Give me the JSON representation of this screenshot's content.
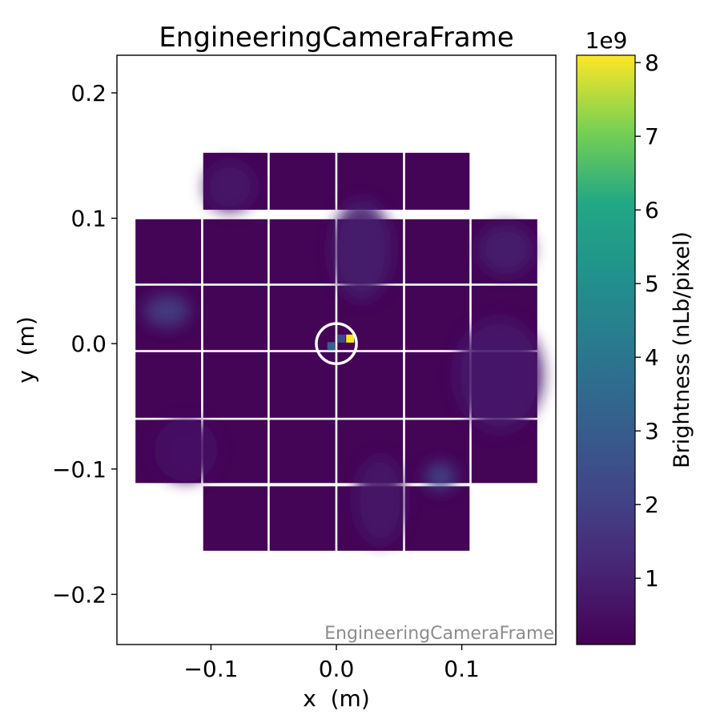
{
  "chart_data": {
    "type": "heatmap",
    "title": "EngineeringCameraFrame",
    "xlabel": "x  (m)",
    "ylabel": "y  (m)",
    "xlim": [
      -0.175,
      0.175
    ],
    "ylim": [
      -0.24,
      0.23
    ],
    "x_ticks": [
      {
        "value": -0.1,
        "label": "−0.1"
      },
      {
        "value": 0.0,
        "label": "0.0"
      },
      {
        "value": 0.1,
        "label": "0.1"
      }
    ],
    "y_ticks": [
      {
        "value": 0.2,
        "label": "0.2"
      },
      {
        "value": 0.1,
        "label": "0.1"
      },
      {
        "value": 0.0,
        "label": "0.0"
      },
      {
        "value": -0.1,
        "label": "−0.1"
      },
      {
        "value": -0.2,
        "label": "−0.2"
      }
    ],
    "watermark": "EngineeringCameraFrame",
    "grid": false,
    "colormap": "viridis",
    "colorbar": {
      "label": "Brightness (nLb/pixel)",
      "multiplier": "1e9",
      "range": [
        0.1,
        8.1
      ],
      "ticks": [
        {
          "value": 1,
          "label": "1"
        },
        {
          "value": 2,
          "label": "2"
        },
        {
          "value": 3,
          "label": "3"
        },
        {
          "value": 4,
          "label": "4"
        },
        {
          "value": 5,
          "label": "5"
        },
        {
          "value": 6,
          "label": "6"
        },
        {
          "value": 7,
          "label": "7"
        },
        {
          "value": 8,
          "label": "8"
        }
      ]
    },
    "background_level": 0.2,
    "rafts": [
      {
        "x": [
          -0.107,
          -0.054
        ],
        "y": [
          0.106,
          0.153
        ]
      },
      {
        "x": [
          -0.054,
          0.0
        ],
        "y": [
          0.106,
          0.153
        ]
      },
      {
        "x": [
          0.0,
          0.054
        ],
        "y": [
          0.106,
          0.153
        ]
      },
      {
        "x": [
          0.054,
          0.107
        ],
        "y": [
          0.106,
          0.153
        ]
      },
      {
        "x": [
          -0.161,
          -0.107
        ],
        "y": [
          0.047,
          0.1
        ]
      },
      {
        "x": [
          -0.107,
          -0.054
        ],
        "y": [
          0.047,
          0.1
        ]
      },
      {
        "x": [
          -0.054,
          0.0
        ],
        "y": [
          0.047,
          0.1
        ]
      },
      {
        "x": [
          0.0,
          0.054
        ],
        "y": [
          0.047,
          0.1
        ]
      },
      {
        "x": [
          0.054,
          0.107
        ],
        "y": [
          0.047,
          0.1
        ]
      },
      {
        "x": [
          0.107,
          0.161
        ],
        "y": [
          0.047,
          0.1
        ]
      },
      {
        "x": [
          -0.161,
          -0.107
        ],
        "y": [
          -0.006,
          0.047
        ]
      },
      {
        "x": [
          -0.107,
          -0.054
        ],
        "y": [
          -0.006,
          0.047
        ]
      },
      {
        "x": [
          -0.054,
          0.0
        ],
        "y": [
          -0.006,
          0.047
        ]
      },
      {
        "x": [
          0.0,
          0.054
        ],
        "y": [
          -0.006,
          0.047
        ]
      },
      {
        "x": [
          0.054,
          0.107
        ],
        "y": [
          -0.006,
          0.047
        ]
      },
      {
        "x": [
          0.107,
          0.161
        ],
        "y": [
          -0.006,
          0.047
        ]
      },
      {
        "x": [
          -0.161,
          -0.107
        ],
        "y": [
          -0.06,
          -0.006
        ]
      },
      {
        "x": [
          -0.107,
          -0.054
        ],
        "y": [
          -0.06,
          -0.006
        ]
      },
      {
        "x": [
          -0.054,
          0.0
        ],
        "y": [
          -0.06,
          -0.006
        ]
      },
      {
        "x": [
          0.0,
          0.054
        ],
        "y": [
          -0.06,
          -0.006
        ]
      },
      {
        "x": [
          0.054,
          0.107
        ],
        "y": [
          -0.06,
          -0.006
        ]
      },
      {
        "x": [
          0.107,
          0.161
        ],
        "y": [
          -0.06,
          -0.006
        ]
      },
      {
        "x": [
          -0.161,
          -0.107
        ],
        "y": [
          -0.112,
          -0.06
        ]
      },
      {
        "x": [
          -0.107,
          -0.054
        ],
        "y": [
          -0.112,
          -0.06
        ]
      },
      {
        "x": [
          -0.054,
          0.0
        ],
        "y": [
          -0.112,
          -0.06
        ]
      },
      {
        "x": [
          0.0,
          0.054
        ],
        "y": [
          -0.112,
          -0.06
        ]
      },
      {
        "x": [
          0.054,
          0.107
        ],
        "y": [
          -0.112,
          -0.06
        ]
      },
      {
        "x": [
          0.107,
          0.161
        ],
        "y": [
          -0.112,
          -0.06
        ]
      },
      {
        "x": [
          -0.107,
          -0.054
        ],
        "y": [
          -0.166,
          -0.113
        ]
      },
      {
        "x": [
          -0.054,
          0.0
        ],
        "y": [
          -0.166,
          -0.113
        ]
      },
      {
        "x": [
          0.0,
          0.054
        ],
        "y": [
          -0.166,
          -0.113
        ]
      },
      {
        "x": [
          0.054,
          0.107
        ],
        "y": [
          -0.166,
          -0.113
        ]
      }
    ],
    "glow_regions": [
      {
        "x": -0.135,
        "y": 0.026,
        "rx": 0.018,
        "ry": 0.013,
        "level": 1.9
      },
      {
        "x": 0.083,
        "y": -0.106,
        "rx": 0.012,
        "ry": 0.011,
        "level": 2.2
      },
      {
        "x": 0.02,
        "y": 0.075,
        "rx": 0.024,
        "ry": 0.04,
        "level": 0.9
      },
      {
        "x": 0.135,
        "y": 0.075,
        "rx": 0.022,
        "ry": 0.02,
        "level": 0.9
      },
      {
        "x": 0.13,
        "y": -0.025,
        "rx": 0.035,
        "ry": 0.045,
        "level": 0.8
      },
      {
        "x": -0.085,
        "y": 0.125,
        "rx": 0.02,
        "ry": 0.02,
        "level": 0.7
      },
      {
        "x": 0.035,
        "y": -0.125,
        "rx": 0.02,
        "ry": 0.035,
        "level": 0.7
      },
      {
        "x": -0.12,
        "y": -0.085,
        "rx": 0.025,
        "ry": 0.025,
        "level": 0.6
      }
    ],
    "bright_pixels": [
      {
        "x": 0.011,
        "y": 0.004,
        "level": 8.1
      },
      {
        "x": -0.004,
        "y": -0.002,
        "level": 3.1
      },
      {
        "x": 0.004,
        "y": 0.004,
        "level": 2.3
      }
    ],
    "center_marker": {
      "x": 0.0,
      "y": 0.0,
      "radius": 0.016
    }
  }
}
